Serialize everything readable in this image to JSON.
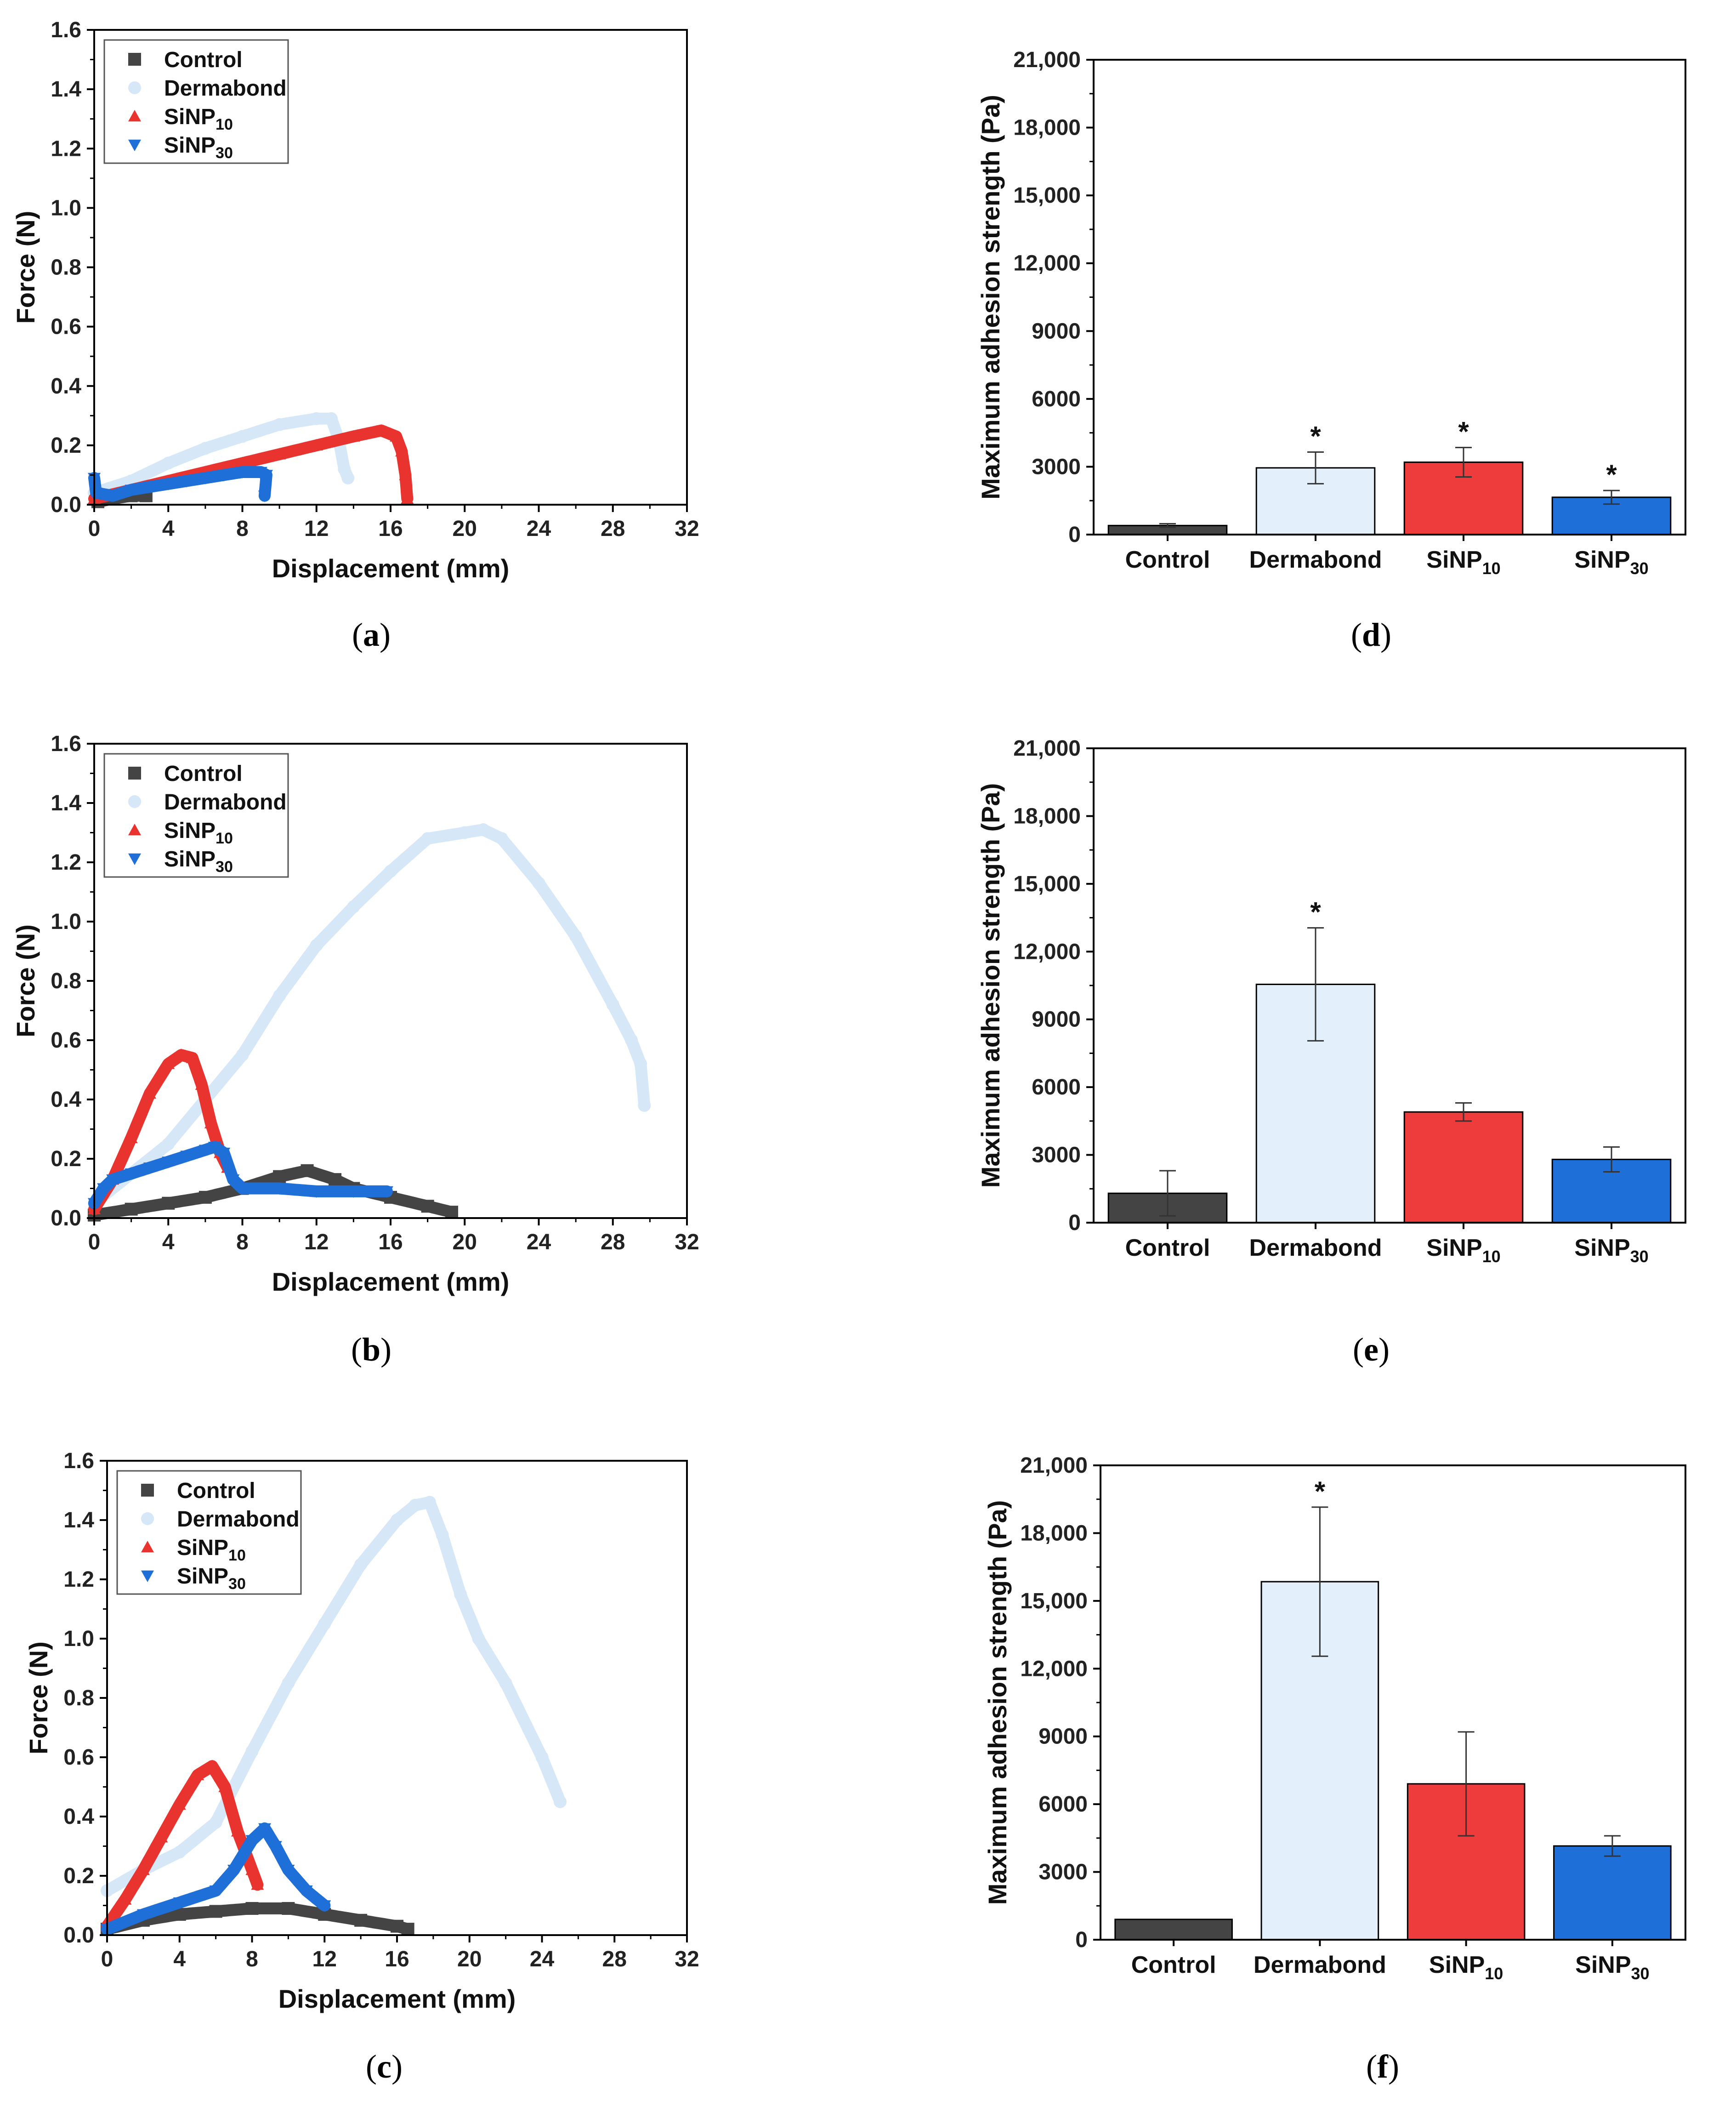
{
  "chart_data": [
    {
      "panel": "a",
      "type": "scatter",
      "caption": {
        "open": "(",
        "letter": "a",
        "close": ")"
      },
      "xlabel": "Displacement (mm)",
      "ylabel": "Force (N)",
      "xlim": [
        0,
        32
      ],
      "ylim": [
        0,
        1.6
      ],
      "xticks": [
        "0",
        "4",
        "8",
        "12",
        "16",
        "20",
        "24",
        "28",
        "32"
      ],
      "yticks": [
        "0.0",
        "0.2",
        "0.4",
        "0.6",
        "0.8",
        "1.0",
        "1.2",
        "1.4",
        "1.6"
      ],
      "legend": [
        {
          "name": "Control",
          "sub": "",
          "marker": "square",
          "color": "#444444"
        },
        {
          "name": "Dermabond",
          "sub": "",
          "marker": "circle",
          "color": "#d6e8f8"
        },
        {
          "name": "SiNP",
          "sub": "10",
          "marker": "triangle-up",
          "color": "#e8332e"
        },
        {
          "name": "SiNP",
          "sub": "30",
          "marker": "triangle-down",
          "color": "#1f6fd8"
        }
      ],
      "series": [
        {
          "name": "Control",
          "color": "#444444",
          "marker": "square",
          "x": [
            0.2,
            1,
            2,
            2.8
          ],
          "y": [
            0.01,
            0.02,
            0.03,
            0.03
          ]
        },
        {
          "name": "Dermabond",
          "color": "#d6e8f8",
          "marker": "circle",
          "x": [
            0,
            2,
            4,
            6,
            8,
            10,
            12,
            12.8,
            13.2,
            13.5,
            13.7
          ],
          "y": [
            0.04,
            0.08,
            0.14,
            0.19,
            0.23,
            0.27,
            0.29,
            0.29,
            0.22,
            0.12,
            0.09
          ]
        },
        {
          "name": "SiNP10",
          "color": "#e8332e",
          "marker": "triangle-up",
          "x": [
            0,
            2,
            4,
            6,
            8,
            10,
            12,
            14,
            15.5,
            16.3,
            16.6,
            16.8,
            16.9
          ],
          "y": [
            0.02,
            0.05,
            0.08,
            0.11,
            0.14,
            0.17,
            0.2,
            0.23,
            0.25,
            0.23,
            0.18,
            0.1,
            0.02
          ]
        },
        {
          "name": "SiNP30",
          "color": "#1f6fd8",
          "marker": "triangle-down",
          "x": [
            0,
            0.1,
            1,
            2,
            3,
            4,
            5,
            6,
            7,
            8,
            9,
            9.3,
            9.2
          ],
          "y": [
            0.09,
            0.04,
            0.03,
            0.05,
            0.06,
            0.07,
            0.08,
            0.09,
            0.1,
            0.11,
            0.11,
            0.1,
            0.03
          ]
        }
      ]
    },
    {
      "panel": "b",
      "type": "scatter",
      "caption": {
        "open": "(",
        "letter": "b",
        "close": ")"
      },
      "xlabel": "Displacement (mm)",
      "ylabel": "Force (N)",
      "xlim": [
        0,
        32
      ],
      "ylim": [
        0,
        1.6
      ],
      "xticks": [
        "0",
        "4",
        "8",
        "12",
        "16",
        "20",
        "24",
        "28",
        "32"
      ],
      "yticks": [
        "0.0",
        "0.2",
        "0.4",
        "0.6",
        "0.8",
        "1.0",
        "1.2",
        "1.4",
        "1.6"
      ],
      "legend": [
        {
          "name": "Control",
          "sub": "",
          "marker": "square",
          "color": "#444444"
        },
        {
          "name": "Dermabond",
          "sub": "",
          "marker": "circle",
          "color": "#d6e8f8"
        },
        {
          "name": "SiNP",
          "sub": "10",
          "marker": "triangle-up",
          "color": "#e8332e"
        },
        {
          "name": "SiNP",
          "sub": "30",
          "marker": "triangle-down",
          "color": "#1f6fd8"
        }
      ],
      "series": [
        {
          "name": "Dermabond",
          "color": "#d6e8f8",
          "marker": "circle",
          "x": [
            0,
            2,
            4,
            6,
            8,
            10,
            12,
            14,
            16,
            18,
            20,
            21,
            22,
            24,
            26,
            28,
            29,
            29.5,
            29.7
          ],
          "y": [
            0.05,
            0.15,
            0.25,
            0.4,
            0.55,
            0.75,
            0.92,
            1.05,
            1.17,
            1.28,
            1.3,
            1.31,
            1.28,
            1.13,
            0.95,
            0.72,
            0.6,
            0.52,
            0.38
          ]
        },
        {
          "name": "Control",
          "color": "#444444",
          "marker": "square",
          "x": [
            0,
            2,
            4,
            6,
            8,
            10,
            11.5,
            13,
            14,
            16,
            18,
            19.3
          ],
          "y": [
            0.01,
            0.03,
            0.05,
            0.07,
            0.1,
            0.14,
            0.16,
            0.13,
            0.1,
            0.07,
            0.04,
            0.02
          ]
        },
        {
          "name": "SiNP10",
          "color": "#e8332e",
          "marker": "triangle-up",
          "x": [
            0,
            1,
            2,
            3,
            4,
            4.7,
            5.3,
            5.8,
            6.3,
            6.8,
            7.2
          ],
          "y": [
            0.03,
            0.13,
            0.27,
            0.42,
            0.52,
            0.55,
            0.54,
            0.45,
            0.32,
            0.22,
            0.17
          ]
        },
        {
          "name": "SiNP30",
          "color": "#1f6fd8",
          "marker": "triangle-down",
          "x": [
            0,
            0.5,
            1,
            2,
            3,
            4,
            5,
            6,
            6.5,
            7,
            7.5,
            8,
            10,
            12,
            14,
            15.8
          ],
          "y": [
            0.05,
            0.1,
            0.13,
            0.15,
            0.17,
            0.19,
            0.21,
            0.23,
            0.24,
            0.22,
            0.13,
            0.1,
            0.1,
            0.09,
            0.09,
            0.09
          ]
        }
      ]
    },
    {
      "panel": "c",
      "type": "scatter",
      "caption": {
        "open": "(",
        "letter": "c",
        "close": ")"
      },
      "xlabel": "Displacement (mm)",
      "ylabel": "Force (N)",
      "xlim": [
        0,
        32
      ],
      "ylim": [
        0,
        1.6
      ],
      "xticks": [
        "0",
        "4",
        "8",
        "12",
        "16",
        "20",
        "24",
        "28",
        "32"
      ],
      "yticks": [
        "0.0",
        "0.2",
        "0.4",
        "0.6",
        "0.8",
        "1.0",
        "1.2",
        "1.4",
        "1.6"
      ],
      "legend": [
        {
          "name": "Control",
          "sub": "",
          "marker": "square",
          "color": "#444444"
        },
        {
          "name": "Dermabond",
          "sub": "",
          "marker": "circle",
          "color": "#d6e8f8"
        },
        {
          "name": "SiNP",
          "sub": "10",
          "marker": "triangle-up",
          "color": "#e8332e"
        },
        {
          "name": "SiNP",
          "sub": "30",
          "marker": "triangle-down",
          "color": "#1f6fd8"
        }
      ],
      "series": [
        {
          "name": "Dermabond",
          "color": "#d6e8f8",
          "marker": "circle",
          "x": [
            0,
            2,
            4,
            6,
            8,
            10,
            12,
            14,
            16,
            17,
            17.8,
            18.5,
            19.5,
            20.5,
            22,
            24,
            25
          ],
          "y": [
            0.15,
            0.22,
            0.28,
            0.38,
            0.62,
            0.85,
            1.05,
            1.25,
            1.4,
            1.45,
            1.46,
            1.35,
            1.15,
            1.0,
            0.85,
            0.6,
            0.45
          ]
        },
        {
          "name": "Control",
          "color": "#444444",
          "marker": "square",
          "x": [
            0,
            2,
            4,
            6,
            8,
            10,
            12,
            14,
            16,
            16.6
          ],
          "y": [
            0.02,
            0.05,
            0.07,
            0.08,
            0.09,
            0.09,
            0.07,
            0.05,
            0.03,
            0.02
          ]
        },
        {
          "name": "SiNP10",
          "color": "#e8332e",
          "marker": "triangle-up",
          "x": [
            0,
            1,
            2,
            3,
            4,
            5,
            5.8,
            6.5,
            7.2,
            8,
            8.3
          ],
          "y": [
            0.03,
            0.12,
            0.22,
            0.33,
            0.44,
            0.54,
            0.57,
            0.5,
            0.35,
            0.22,
            0.17
          ]
        },
        {
          "name": "SiNP30",
          "color": "#1f6fd8",
          "marker": "triangle-down",
          "x": [
            0,
            2,
            4,
            6,
            7,
            8,
            8.7,
            9.3,
            10,
            11,
            12
          ],
          "y": [
            0.02,
            0.07,
            0.11,
            0.15,
            0.22,
            0.32,
            0.36,
            0.3,
            0.22,
            0.15,
            0.1
          ]
        }
      ]
    },
    {
      "panel": "d",
      "type": "bar",
      "caption": {
        "open": "(",
        "letter": "d",
        "close": ")"
      },
      "ylabel": "Maximum adhesion strength (Pa)",
      "ylim": [
        0,
        21000
      ],
      "yticks": [
        "0",
        "3000",
        "6000",
        "9000",
        "12,000",
        "15,000",
        "18,000",
        "21,000"
      ],
      "categories": [
        {
          "name": "Control",
          "sub": ""
        },
        {
          "name": "Dermabond",
          "sub": ""
        },
        {
          "name": "SiNP",
          "sub": "10"
        },
        {
          "name": "SiNP",
          "sub": "30"
        }
      ],
      "values": [
        400,
        2950,
        3200,
        1650
      ],
      "errors": [
        80,
        700,
        650,
        300
      ],
      "colors": [
        "#444444",
        "#e3f0fb",
        "#ee3b3b",
        "#1f6fd8"
      ],
      "significance": [
        "",
        "*",
        "*",
        "*"
      ]
    },
    {
      "panel": "e",
      "type": "bar",
      "caption": {
        "open": "(",
        "letter": "e",
        "close": ")"
      },
      "ylabel": "Maximum adhesion strength (Pa)",
      "ylim": [
        0,
        21000
      ],
      "yticks": [
        "0",
        "3000",
        "6000",
        "9000",
        "12,000",
        "15,000",
        "18,000",
        "21,000"
      ],
      "categories": [
        {
          "name": "Control",
          "sub": ""
        },
        {
          "name": "Dermabond",
          "sub": ""
        },
        {
          "name": "SiNP",
          "sub": "10"
        },
        {
          "name": "SiNP",
          "sub": "30"
        }
      ],
      "values": [
        1300,
        10550,
        4900,
        2800
      ],
      "errors": [
        1000,
        2500,
        400,
        550
      ],
      "colors": [
        "#444444",
        "#e3f0fb",
        "#ee3b3b",
        "#1f6fd8"
      ],
      "significance": [
        "",
        "*",
        "",
        ""
      ]
    },
    {
      "panel": "f",
      "type": "bar",
      "caption": {
        "open": "(",
        "letter": "f",
        "close": ")"
      },
      "ylabel": "Maximum adhesion strength (Pa)",
      "ylim": [
        0,
        21000
      ],
      "yticks": [
        "0",
        "3000",
        "6000",
        "9000",
        "12,000",
        "15,000",
        "18,000",
        "21,000"
      ],
      "categories": [
        {
          "name": "Control",
          "sub": ""
        },
        {
          "name": "Dermabond",
          "sub": ""
        },
        {
          "name": "SiNP",
          "sub": "10"
        },
        {
          "name": "SiNP",
          "sub": "30"
        }
      ],
      "values": [
        900,
        15850,
        6900,
        4150
      ],
      "errors": [
        0,
        3300,
        2300,
        450
      ],
      "colors": [
        "#444444",
        "#e3f0fb",
        "#ee3b3b",
        "#1f6fd8"
      ],
      "significance": [
        "",
        "*",
        "",
        ""
      ]
    }
  ]
}
